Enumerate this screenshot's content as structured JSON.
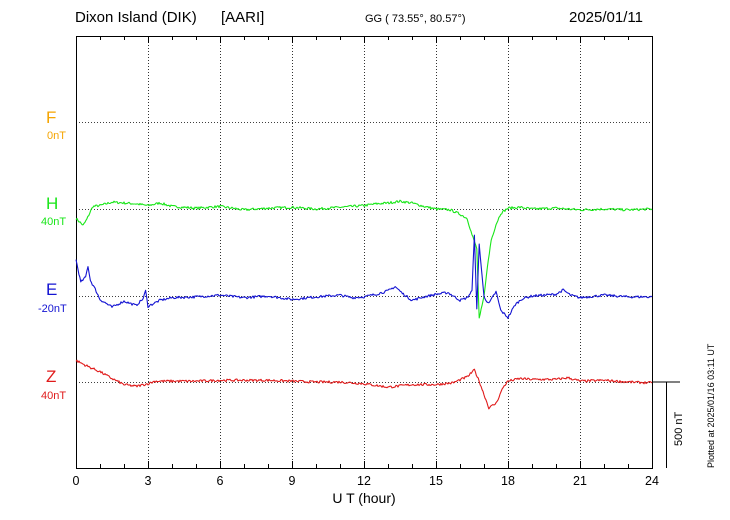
{
  "header": {
    "station": "Dixon Island (DIK)",
    "institute": "[AARI]",
    "coords": "GG ( 73.55°,  80.57°)",
    "date": "2025/01/11"
  },
  "plotted_note": "Plotted at 2025/01/16 03:11 UT",
  "scale_bar_label": "500 nT",
  "colors": {
    "F": "#f5a400",
    "H": "#19e619",
    "E": "#1414d2",
    "Z": "#e01a1a"
  },
  "chart_data": {
    "type": "line",
    "xlabel": "U T (hour)",
    "x_ticks": [
      "0",
      "3",
      "6",
      "9",
      "12",
      "15",
      "18",
      "21",
      "24"
    ],
    "xlim": [
      0,
      24
    ],
    "y_unit": "nT",
    "scale_bar_nT": 500,
    "grid": true,
    "channels": [
      {
        "name": "F",
        "baseline_label": "0nT",
        "baseline": 0,
        "points": []
      },
      {
        "name": "H",
        "baseline_label": "40nT",
        "baseline": 40,
        "points": [
          [
            0,
            -55
          ],
          [
            0.3,
            -95
          ],
          [
            0.45,
            -60
          ],
          [
            0.7,
            15
          ],
          [
            1,
            20
          ],
          [
            1.5,
            40
          ],
          [
            2,
            35
          ],
          [
            2.5,
            30
          ],
          [
            3,
            20
          ],
          [
            3.5,
            35
          ],
          [
            4,
            15
          ],
          [
            5,
            5
          ],
          [
            6,
            15
          ],
          [
            7,
            -5
          ],
          [
            8,
            5
          ],
          [
            9,
            10
          ],
          [
            10,
            0
          ],
          [
            11,
            10
          ],
          [
            11.5,
            15
          ],
          [
            12,
            20
          ],
          [
            12.5,
            30
          ],
          [
            13,
            35
          ],
          [
            13.5,
            45
          ],
          [
            14,
            35
          ],
          [
            14.5,
            15
          ],
          [
            15,
            0
          ],
          [
            15.6,
            -5
          ],
          [
            16,
            -30
          ],
          [
            16.3,
            -55
          ],
          [
            16.5,
            -150
          ],
          [
            16.7,
            -230
          ],
          [
            16.8,
            -640
          ],
          [
            17,
            -510
          ],
          [
            17.1,
            -380
          ],
          [
            17.3,
            -180
          ],
          [
            17.5,
            -90
          ],
          [
            17.7,
            -25
          ],
          [
            18,
            5
          ],
          [
            18.5,
            10
          ],
          [
            19,
            0
          ],
          [
            20,
            5
          ],
          [
            21,
            -5
          ],
          [
            22,
            0
          ],
          [
            23,
            -5
          ],
          [
            24,
            0
          ]
        ]
      },
      {
        "name": "E",
        "baseline_label": "-20nT",
        "baseline": -20,
        "points": [
          [
            0,
            210
          ],
          [
            0.2,
            80
          ],
          [
            0.4,
            110
          ],
          [
            0.5,
            175
          ],
          [
            0.6,
            90
          ],
          [
            0.8,
            40
          ],
          [
            1,
            -20
          ],
          [
            1.5,
            -65
          ],
          [
            2,
            -30
          ],
          [
            2.5,
            -55
          ],
          [
            2.8,
            -15
          ],
          [
            2.9,
            30
          ],
          [
            3,
            -60
          ],
          [
            3.5,
            -25
          ],
          [
            4,
            -10
          ],
          [
            5,
            -5
          ],
          [
            6,
            5
          ],
          [
            7,
            -10
          ],
          [
            8,
            0
          ],
          [
            9,
            -20
          ],
          [
            10,
            -5
          ],
          [
            11,
            5
          ],
          [
            11.5,
            -10
          ],
          [
            12,
            -5
          ],
          [
            12.5,
            10
          ],
          [
            13,
            30
          ],
          [
            13.3,
            55
          ],
          [
            13.6,
            15
          ],
          [
            14,
            -25
          ],
          [
            14.5,
            -5
          ],
          [
            15,
            10
          ],
          [
            15.5,
            20
          ],
          [
            16,
            -25
          ],
          [
            16.3,
            -10
          ],
          [
            16.5,
            30
          ],
          [
            16.6,
            360
          ],
          [
            16.7,
            -80
          ],
          [
            16.8,
            300
          ],
          [
            17,
            -5
          ],
          [
            17.2,
            -45
          ],
          [
            17.5,
            25
          ],
          [
            17.7,
            -85
          ],
          [
            18,
            -125
          ],
          [
            18.3,
            -50
          ],
          [
            18.6,
            -15
          ],
          [
            19,
            0
          ],
          [
            20,
            10
          ],
          [
            20.3,
            35
          ],
          [
            20.6,
            5
          ],
          [
            21,
            -10
          ],
          [
            22,
            5
          ],
          [
            23,
            -5
          ],
          [
            24,
            -5
          ]
        ]
      },
      {
        "name": "Z",
        "baseline_label": "40nT",
        "baseline": 40,
        "points": [
          [
            0,
            125
          ],
          [
            0.5,
            90
          ],
          [
            1,
            60
          ],
          [
            1.5,
            20
          ],
          [
            2,
            -15
          ],
          [
            2.5,
            -25
          ],
          [
            3,
            -10
          ],
          [
            3.3,
            5
          ],
          [
            4,
            5
          ],
          [
            5,
            5
          ],
          [
            6,
            10
          ],
          [
            8,
            10
          ],
          [
            9,
            5
          ],
          [
            10,
            0
          ],
          [
            11,
            0
          ],
          [
            12,
            -10
          ],
          [
            13,
            -30
          ],
          [
            14,
            -15
          ],
          [
            15,
            -15
          ],
          [
            15.7,
            -5
          ],
          [
            16.3,
            30
          ],
          [
            16.6,
            70
          ],
          [
            16.8,
            5
          ],
          [
            17.2,
            -150
          ],
          [
            17.5,
            -125
          ],
          [
            17.8,
            -30
          ],
          [
            18,
            5
          ],
          [
            18.5,
            20
          ],
          [
            19,
            15
          ],
          [
            20,
            15
          ],
          [
            20.5,
            25
          ],
          [
            21,
            5
          ],
          [
            22,
            10
          ],
          [
            23,
            0
          ],
          [
            24,
            -5
          ]
        ]
      }
    ]
  }
}
